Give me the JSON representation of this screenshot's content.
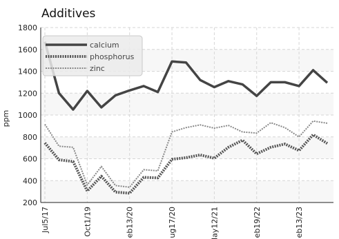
{
  "chart_data": {
    "type": "line",
    "title": "Additives",
    "ylabel": "ppm",
    "xlabel": "",
    "ylim": [
      200,
      1800
    ],
    "yticks": [
      200,
      400,
      600,
      800,
      1000,
      1200,
      1400,
      1600,
      1800
    ],
    "x": [
      "Jul5/17",
      "",
      "",
      "Oct1/19",
      "",
      "",
      "eb13/20",
      "",
      "",
      "ug17/20",
      "",
      "",
      "lay12/21",
      "",
      "",
      "eb19/22",
      "",
      "",
      "eb13/23",
      "",
      ""
    ],
    "xticks": [
      "Jul5/17",
      "Oct1/19",
      "eb13/20",
      "ug17/20",
      "lay12/21",
      "eb19/22",
      "eb13/23"
    ],
    "grid": true,
    "legend_position": "top-left",
    "series": [
      {
        "name": "calcium",
        "color": "#444444",
        "style": "solid",
        "values": [
          1670,
          1200,
          1050,
          1220,
          1070,
          1180,
          1225,
          1265,
          1210,
          1490,
          1480,
          1320,
          1255,
          1310,
          1280,
          1175,
          1300,
          1300,
          1265,
          1410,
          1295
        ]
      },
      {
        "name": "phosphorus",
        "color": "#555555",
        "style": "dotted-thick",
        "values": [
          745,
          590,
          575,
          305,
          440,
          295,
          285,
          430,
          425,
          595,
          610,
          635,
          605,
          705,
          770,
          645,
          705,
          735,
          675,
          820,
          740
        ]
      },
      {
        "name": "zinc",
        "color": "#888888",
        "style": "dotted",
        "values": [
          915,
          715,
          705,
          360,
          530,
          355,
          340,
          500,
          490,
          845,
          885,
          910,
          880,
          905,
          845,
          835,
          930,
          885,
          800,
          945,
          925
        ]
      }
    ]
  }
}
